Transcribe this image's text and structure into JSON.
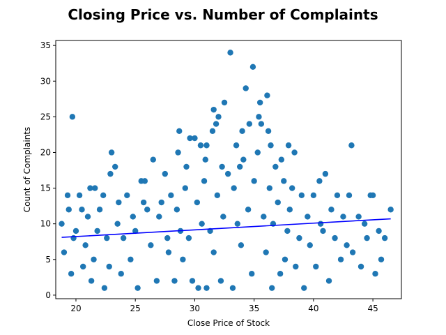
{
  "chart_data": {
    "type": "scatter",
    "title": "Closing Price vs. Number of Complaints",
    "xlabel": "Close Price of Stock",
    "ylabel": "Count of Complaints",
    "xlim": [
      18.3,
      47.4
    ],
    "ylim": [
      -0.5,
      35.7
    ],
    "xticks": [
      20,
      25,
      30,
      35,
      40,
      45
    ],
    "yticks": [
      0,
      5,
      10,
      15,
      20,
      25,
      30,
      35
    ],
    "grid": false,
    "colors": {
      "points": "#1f77b4",
      "trend": "#0000ff"
    },
    "series": [
      {
        "kind": "points",
        "note": "",
        "points": [
          [
            19.7,
            25
          ],
          [
            33.0,
            34
          ],
          [
            34.9,
            32
          ],
          [
            34.3,
            29
          ],
          [
            36.1,
            28
          ],
          [
            35.5,
            27
          ],
          [
            32.5,
            27
          ],
          [
            31.6,
            26
          ],
          [
            32.0,
            25
          ],
          [
            35.4,
            25
          ],
          [
            31.8,
            24
          ],
          [
            35.6,
            24
          ],
          [
            34.6,
            24
          ],
          [
            36.2,
            23
          ],
          [
            34.0,
            23
          ],
          [
            28.7,
            23
          ],
          [
            31.5,
            23
          ],
          [
            43.2,
            21
          ],
          [
            33.5,
            21
          ],
          [
            31.0,
            21
          ],
          [
            30.5,
            21
          ],
          [
            30.0,
            22
          ],
          [
            29.6,
            22
          ],
          [
            23.0,
            20
          ],
          [
            26.5,
            19
          ],
          [
            23.3,
            18
          ],
          [
            27.5,
            17
          ],
          [
            41.0,
            17
          ],
          [
            22.9,
            17
          ],
          [
            40.5,
            16
          ],
          [
            25.5,
            16
          ],
          [
            25.8,
            16
          ],
          [
            44.8,
            14
          ],
          [
            43.0,
            14
          ],
          [
            42.0,
            14
          ],
          [
            45.0,
            14
          ],
          [
            46.5,
            12
          ],
          [
            18.8,
            10
          ],
          [
            19.3,
            14
          ],
          [
            20.3,
            14
          ],
          [
            21.2,
            15
          ],
          [
            21.6,
            15
          ],
          [
            22.3,
            14
          ],
          [
            24.3,
            14
          ],
          [
            24.8,
            11
          ],
          [
            20.0,
            9
          ],
          [
            21.0,
            11
          ],
          [
            23.5,
            10
          ],
          [
            26.0,
            12
          ],
          [
            27.2,
            13
          ],
          [
            28.0,
            14
          ],
          [
            29.2,
            15
          ],
          [
            30.8,
            16
          ],
          [
            32.8,
            17
          ],
          [
            33.8,
            18
          ],
          [
            36.8,
            18
          ],
          [
            37.5,
            16
          ],
          [
            38.2,
            15
          ],
          [
            39.0,
            14
          ],
          [
            40.0,
            14
          ],
          [
            41.5,
            12
          ],
          [
            42.5,
            11
          ],
          [
            43.8,
            11
          ],
          [
            44.3,
            10
          ],
          [
            45.5,
            9
          ],
          [
            46.0,
            8
          ],
          [
            45.7,
            5
          ],
          [
            45.2,
            3
          ],
          [
            44.0,
            4
          ],
          [
            42.3,
            5
          ],
          [
            41.3,
            2
          ],
          [
            39.2,
            1
          ],
          [
            36.5,
            1
          ],
          [
            33.2,
            1
          ],
          [
            31.0,
            1
          ],
          [
            30.3,
            1
          ],
          [
            25.2,
            1
          ],
          [
            22.4,
            1
          ],
          [
            21.3,
            2
          ],
          [
            19.6,
            3
          ],
          [
            20.6,
            4
          ],
          [
            23.8,
            3
          ],
          [
            26.8,
            2
          ],
          [
            28.3,
            2
          ],
          [
            29.8,
            2
          ],
          [
            32.2,
            2
          ],
          [
            34.8,
            3
          ],
          [
            37.2,
            3
          ],
          [
            38.5,
            4
          ],
          [
            40.2,
            4
          ],
          [
            43.3,
            6
          ],
          [
            19.0,
            6
          ],
          [
            19.8,
            8
          ],
          [
            20.8,
            7
          ],
          [
            21.8,
            9
          ],
          [
            22.6,
            8
          ],
          [
            24.0,
            8
          ],
          [
            25.0,
            9
          ],
          [
            26.3,
            7
          ],
          [
            27.7,
            8
          ],
          [
            28.8,
            9
          ],
          [
            29.5,
            8
          ],
          [
            30.6,
            10
          ],
          [
            31.3,
            9
          ],
          [
            32.4,
            11
          ],
          [
            33.6,
            10
          ],
          [
            34.5,
            12
          ],
          [
            35.8,
            11
          ],
          [
            36.6,
            10
          ],
          [
            37.8,
            9
          ],
          [
            38.8,
            8
          ],
          [
            39.7,
            7
          ],
          [
            40.8,
            9
          ],
          [
            41.8,
            8
          ],
          [
            42.8,
            7
          ],
          [
            44.5,
            8
          ],
          [
            19.4,
            12
          ],
          [
            20.5,
            12
          ],
          [
            22.0,
            12
          ],
          [
            23.6,
            13
          ],
          [
            25.7,
            13
          ],
          [
            27.0,
            11
          ],
          [
            28.5,
            12
          ],
          [
            30.2,
            13
          ],
          [
            31.9,
            14
          ],
          [
            33.3,
            15
          ],
          [
            35.0,
            16
          ],
          [
            36.3,
            15
          ],
          [
            37.0,
            13
          ],
          [
            38.0,
            12
          ],
          [
            39.5,
            11
          ],
          [
            40.6,
            10
          ],
          [
            27.8,
            6
          ],
          [
            29.0,
            5
          ],
          [
            31.6,
            6
          ],
          [
            33.9,
            7
          ],
          [
            36.0,
            6
          ],
          [
            37.6,
            5
          ],
          [
            24.6,
            5
          ],
          [
            22.8,
            4
          ],
          [
            21.5,
            5
          ],
          [
            35.3,
            20
          ],
          [
            34.1,
            19
          ],
          [
            32.3,
            18
          ],
          [
            30.9,
            19
          ],
          [
            29.3,
            18
          ],
          [
            28.6,
            20
          ],
          [
            36.4,
            21
          ],
          [
            37.3,
            19
          ],
          [
            38.4,
            20
          ],
          [
            37.9,
            21
          ]
        ]
      },
      {
        "kind": "trend-line",
        "note": "",
        "points": [
          [
            18.8,
            8.1
          ],
          [
            46.5,
            10.7
          ]
        ]
      }
    ]
  }
}
